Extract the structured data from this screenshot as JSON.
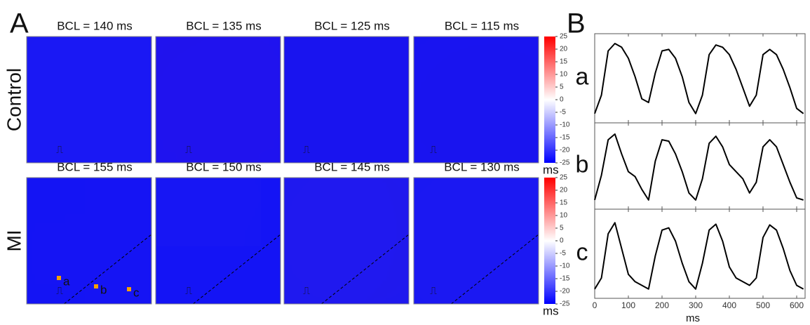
{
  "panel_a": {
    "label": "A",
    "rows": [
      {
        "label": "Control",
        "maps": [
          "BCL = 140 ms",
          "BCL = 135 ms",
          "BCL = 125 ms",
          "BCL = 115 ms"
        ]
      },
      {
        "label": "MI",
        "maps": [
          "BCL = 155 ms",
          "BCL = 150 ms",
          "BCL = 145 ms",
          "BCL = 130 ms"
        ]
      }
    ],
    "colorbar": {
      "lim": [
        -25,
        25
      ],
      "ticks": [
        25,
        20,
        15,
        10,
        5,
        0,
        -5,
        -10,
        -15,
        -20,
        -25
      ],
      "unit": "ms"
    },
    "sites": [
      "a",
      "b",
      "c"
    ]
  },
  "chart_data": {
    "type": "line",
    "label": "B",
    "x": [
      0,
      20,
      40,
      60,
      80,
      100,
      120,
      140,
      160,
      180,
      200,
      220,
      240,
      260,
      280,
      300,
      320,
      340,
      360,
      380,
      400,
      420,
      440,
      460,
      480,
      500,
      520,
      540,
      560,
      580,
      600,
      620
    ],
    "xlim": [
      0,
      625
    ],
    "xticks": [
      0,
      100,
      200,
      300,
      400,
      500,
      600
    ],
    "xlabel": "ms",
    "ylim": [
      0,
      1
    ],
    "series": [
      {
        "name": "a",
        "color": "#000000",
        "values": [
          0.05,
          0.3,
          0.9,
          1.0,
          0.95,
          0.8,
          0.55,
          0.25,
          0.2,
          0.6,
          0.9,
          0.92,
          0.8,
          0.55,
          0.2,
          0.05,
          0.3,
          0.85,
          0.98,
          0.95,
          0.85,
          0.65,
          0.4,
          0.15,
          0.3,
          0.85,
          0.92,
          0.85,
          0.65,
          0.4,
          0.12,
          0.05
        ]
      },
      {
        "name": "b",
        "color": "#000000",
        "values": [
          0.05,
          0.4,
          0.9,
          0.98,
          0.7,
          0.45,
          0.38,
          0.2,
          0.05,
          0.6,
          0.9,
          0.88,
          0.7,
          0.45,
          0.15,
          0.05,
          0.35,
          0.85,
          0.95,
          0.8,
          0.55,
          0.45,
          0.35,
          0.15,
          0.3,
          0.8,
          0.9,
          0.8,
          0.55,
          0.3,
          0.08,
          0.05
        ]
      },
      {
        "name": "c",
        "color": "#000000",
        "values": [
          0.05,
          0.2,
          0.8,
          0.95,
          0.6,
          0.25,
          0.15,
          0.1,
          0.05,
          0.5,
          0.85,
          0.88,
          0.7,
          0.4,
          0.15,
          0.05,
          0.4,
          0.85,
          0.93,
          0.7,
          0.35,
          0.2,
          0.15,
          0.1,
          0.2,
          0.75,
          0.92,
          0.85,
          0.6,
          0.3,
          0.1,
          0.05
        ]
      }
    ]
  }
}
